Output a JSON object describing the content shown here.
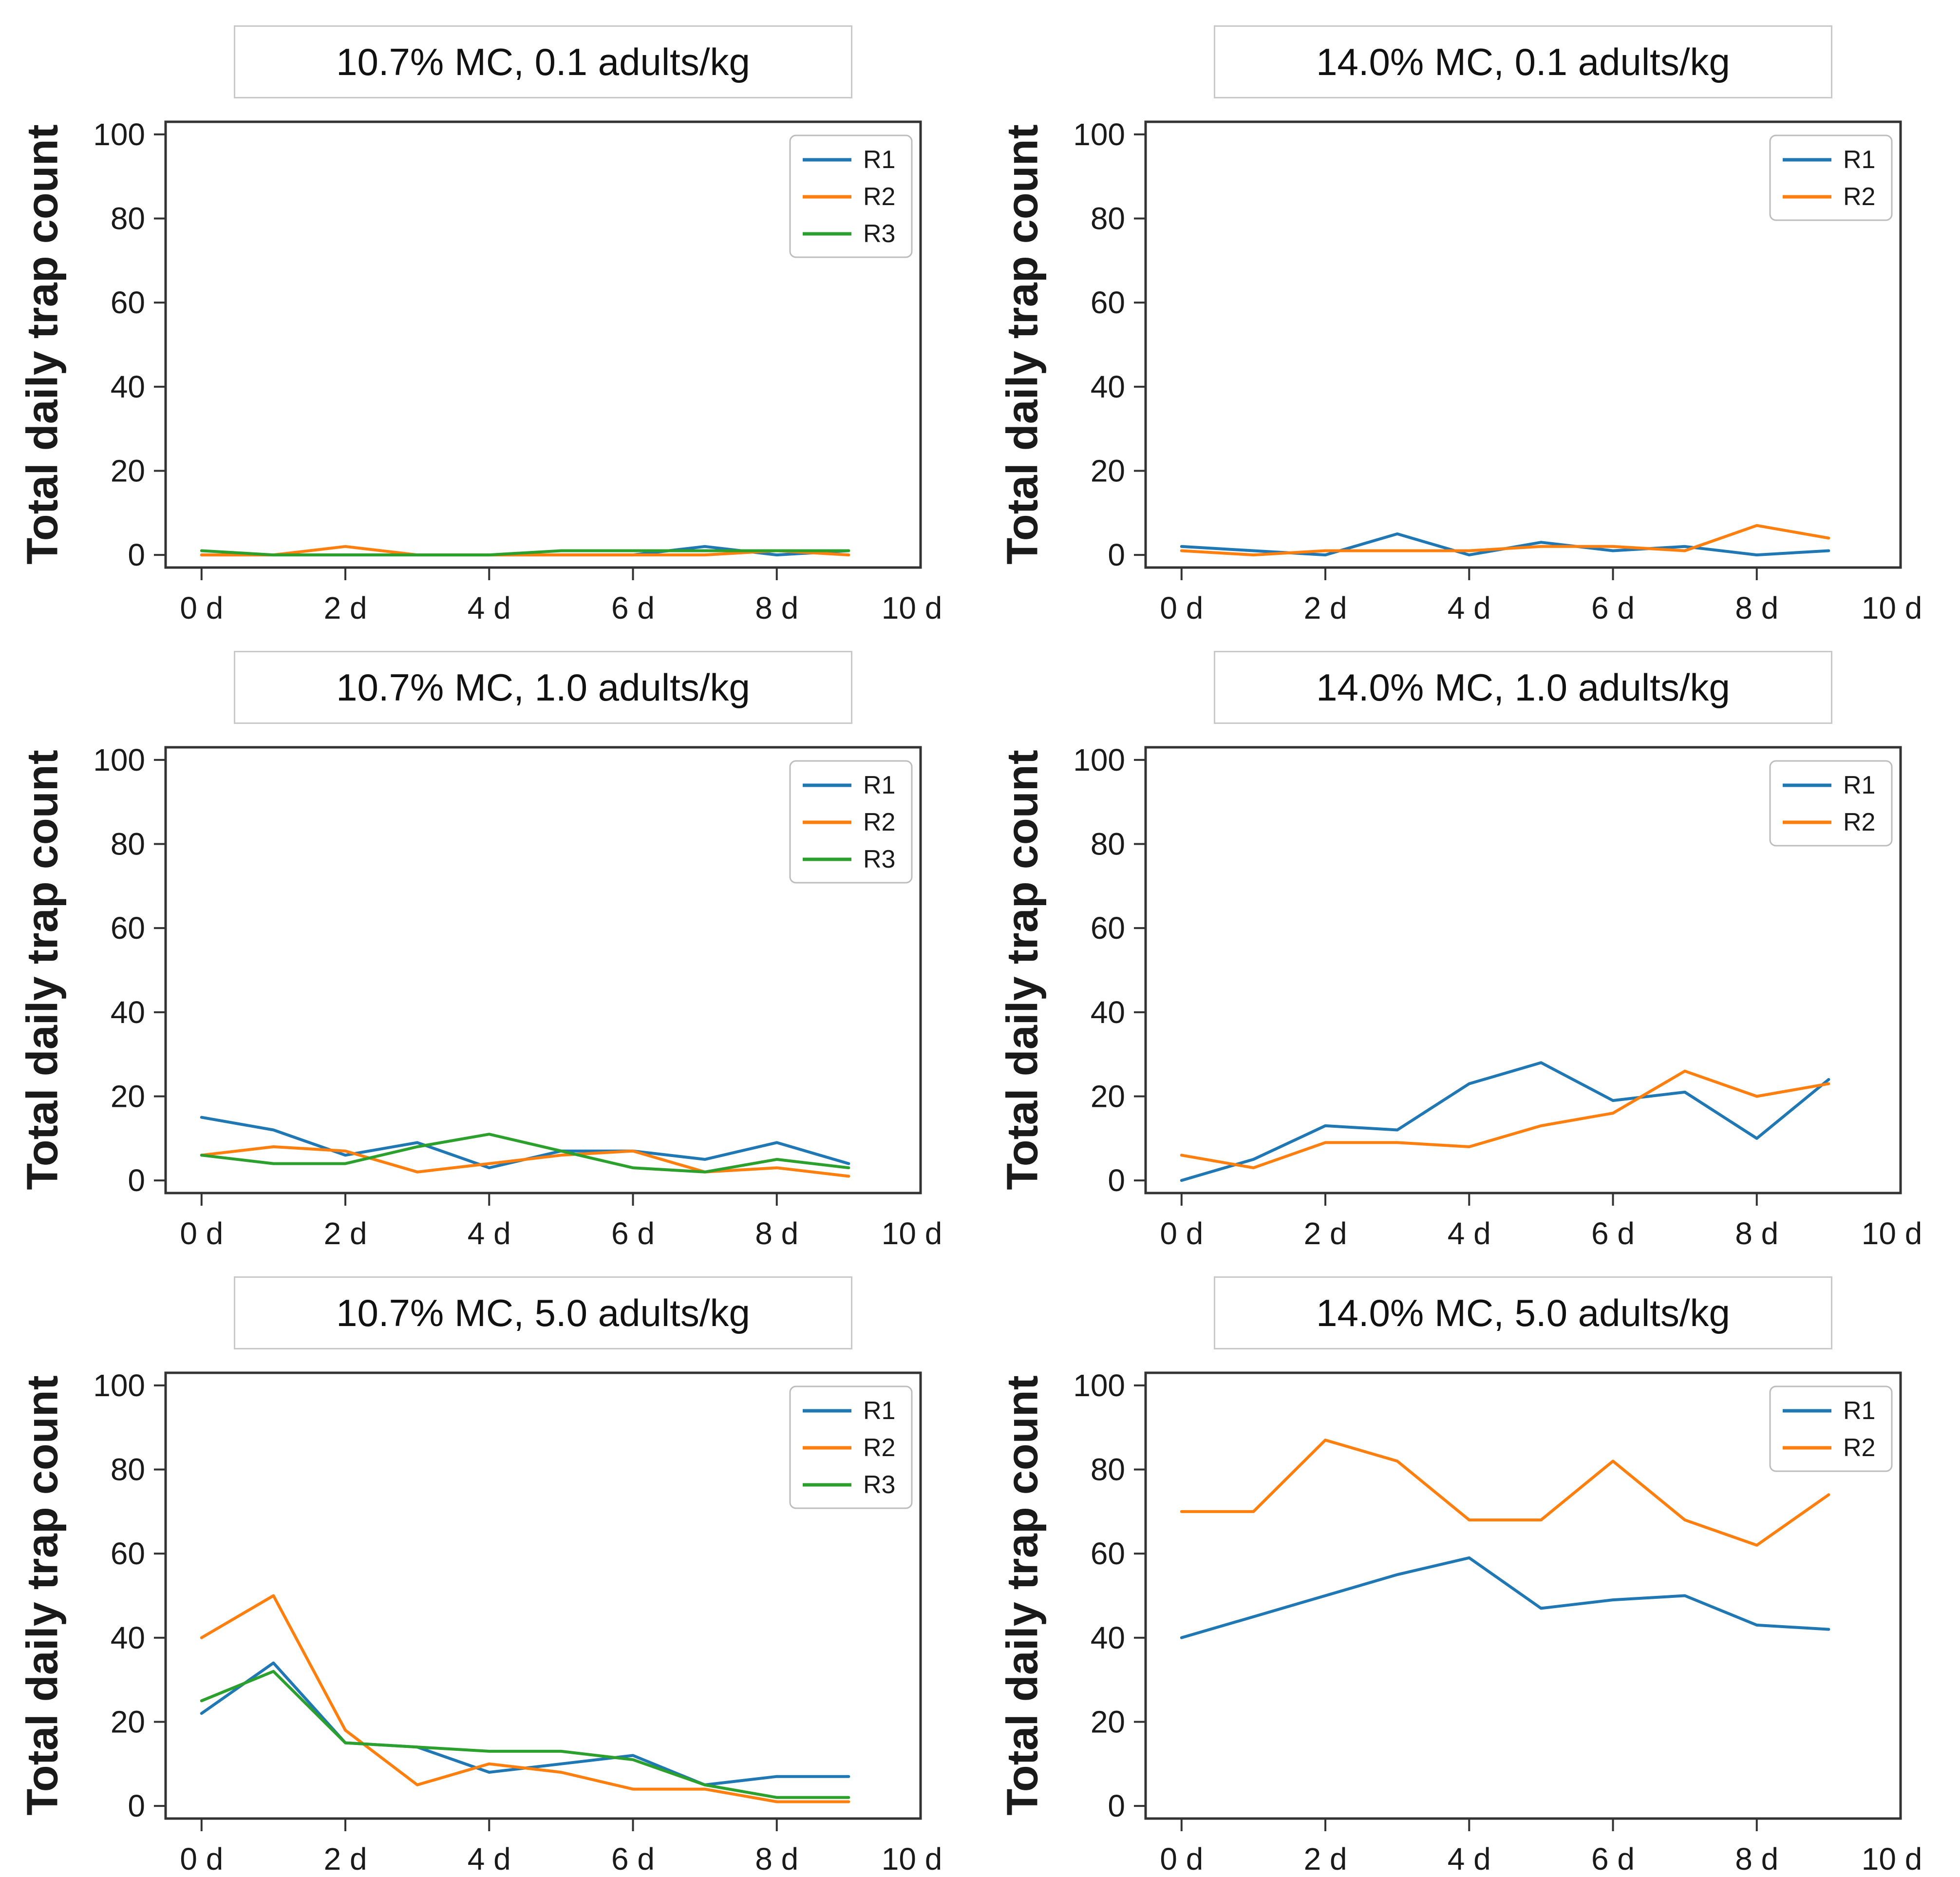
{
  "figure": {
    "background": "#ffffff",
    "rows": 3,
    "cols": 2
  },
  "axis": {
    "ylabel": "Total daily trap count",
    "y_ticks": [
      0,
      20,
      40,
      60,
      80,
      100
    ],
    "ylim": [
      0,
      100
    ],
    "x_ticks": [
      {
        "day": 0,
        "label": "0 d"
      },
      {
        "day": 2,
        "label": "2 d"
      },
      {
        "day": 4,
        "label": "4 d"
      },
      {
        "day": 6,
        "label": "6 d"
      },
      {
        "day": 8,
        "label": "8 d"
      },
      {
        "day": 10,
        "label": "10 d"
      }
    ],
    "grid": false,
    "spine_color": "#333333"
  },
  "legend": {
    "position": "top-right",
    "border_color": "#bdbdbd",
    "background": "#ffffff"
  },
  "colors": {
    "R1": "#1f77b4",
    "R2": "#ff7f0e",
    "R3": "#2ca02c"
  },
  "chart_data": [
    {
      "type": "line",
      "title": "10.7% MC, 0.1 adults/kg",
      "x_days": [
        0,
        1,
        2,
        3,
        4,
        5,
        6,
        7,
        8,
        9
      ],
      "xlabel": "",
      "ylabel": "Total daily trap count",
      "ylim": [
        0,
        100
      ],
      "legend_entries": [
        "R1",
        "R2",
        "R3"
      ],
      "series": [
        {
          "name": "R1",
          "color": "#1f77b4",
          "values": [
            0,
            0,
            0,
            0,
            0,
            0,
            0,
            2,
            0,
            1
          ]
        },
        {
          "name": "R2",
          "color": "#ff7f0e",
          "values": [
            0,
            0,
            2,
            0,
            0,
            0,
            0,
            0,
            1,
            0
          ]
        },
        {
          "name": "R3",
          "color": "#2ca02c",
          "values": [
            1,
            0,
            0,
            0,
            0,
            1,
            1,
            1,
            1,
            1
          ]
        }
      ]
    },
    {
      "type": "line",
      "title": "14.0% MC, 0.1 adults/kg",
      "x_days": [
        0,
        1,
        2,
        3,
        4,
        5,
        6,
        7,
        8,
        9
      ],
      "xlabel": "",
      "ylabel": "Total daily trap count",
      "ylim": [
        0,
        100
      ],
      "legend_entries": [
        "R1",
        "R2"
      ],
      "series": [
        {
          "name": "R1",
          "color": "#1f77b4",
          "values": [
            2,
            1,
            0,
            5,
            0,
            3,
            1,
            2,
            0,
            1
          ]
        },
        {
          "name": "R2",
          "color": "#ff7f0e",
          "values": [
            1,
            0,
            1,
            1,
            1,
            2,
            2,
            1,
            7,
            4
          ]
        }
      ]
    },
    {
      "type": "line",
      "title": "10.7% MC, 1.0 adults/kg",
      "x_days": [
        0,
        1,
        2,
        3,
        4,
        5,
        6,
        7,
        8,
        9
      ],
      "xlabel": "",
      "ylabel": "Total daily trap count",
      "ylim": [
        0,
        100
      ],
      "legend_entries": [
        "R1",
        "R2",
        "R3"
      ],
      "series": [
        {
          "name": "R1",
          "color": "#1f77b4",
          "values": [
            15,
            12,
            6,
            9,
            3,
            7,
            7,
            5,
            9,
            4
          ]
        },
        {
          "name": "R2",
          "color": "#ff7f0e",
          "values": [
            6,
            8,
            7,
            2,
            4,
            6,
            7,
            2,
            3,
            1
          ]
        },
        {
          "name": "R3",
          "color": "#2ca02c",
          "values": [
            6,
            4,
            4,
            8,
            11,
            7,
            3,
            2,
            5,
            3
          ]
        }
      ]
    },
    {
      "type": "line",
      "title": "14.0% MC, 1.0 adults/kg",
      "x_days": [
        0,
        1,
        2,
        3,
        4,
        5,
        6,
        7,
        8,
        9
      ],
      "xlabel": "",
      "ylabel": "Total daily trap count",
      "ylim": [
        0,
        100
      ],
      "legend_entries": [
        "R1",
        "R2"
      ],
      "series": [
        {
          "name": "R1",
          "color": "#1f77b4",
          "values": [
            0,
            5,
            13,
            12,
            23,
            28,
            19,
            21,
            10,
            24
          ]
        },
        {
          "name": "R2",
          "color": "#ff7f0e",
          "values": [
            6,
            3,
            9,
            9,
            8,
            13,
            16,
            26,
            20,
            23
          ]
        }
      ]
    },
    {
      "type": "line",
      "title": "10.7% MC, 5.0 adults/kg",
      "x_days": [
        0,
        1,
        2,
        3,
        4,
        5,
        6,
        7,
        8,
        9
      ],
      "xlabel": "",
      "ylabel": "Total daily trap count",
      "ylim": [
        0,
        100
      ],
      "legend_entries": [
        "R1",
        "R2",
        "R3"
      ],
      "series": [
        {
          "name": "R1",
          "color": "#1f77b4",
          "values": [
            22,
            34,
            15,
            14,
            8,
            10,
            12,
            5,
            7,
            7
          ]
        },
        {
          "name": "R2",
          "color": "#ff7f0e",
          "values": [
            40,
            50,
            18,
            5,
            10,
            8,
            4,
            4,
            1,
            1
          ]
        },
        {
          "name": "R3",
          "color": "#2ca02c",
          "values": [
            25,
            32,
            15,
            14,
            13,
            13,
            11,
            5,
            2,
            2
          ]
        }
      ]
    },
    {
      "type": "line",
      "title": "14.0% MC, 5.0 adults/kg",
      "x_days": [
        0,
        1,
        2,
        3,
        4,
        5,
        6,
        7,
        8,
        9
      ],
      "xlabel": "",
      "ylabel": "Total daily trap count",
      "ylim": [
        0,
        100
      ],
      "legend_entries": [
        "R1",
        "R2"
      ],
      "series": [
        {
          "name": "R1",
          "color": "#1f77b4",
          "values": [
            40,
            45,
            50,
            55,
            59,
            47,
            49,
            50,
            43,
            42
          ]
        },
        {
          "name": "R2",
          "color": "#ff7f0e",
          "values": [
            70,
            70,
            87,
            82,
            68,
            68,
            82,
            68,
            62,
            74
          ]
        }
      ]
    }
  ]
}
